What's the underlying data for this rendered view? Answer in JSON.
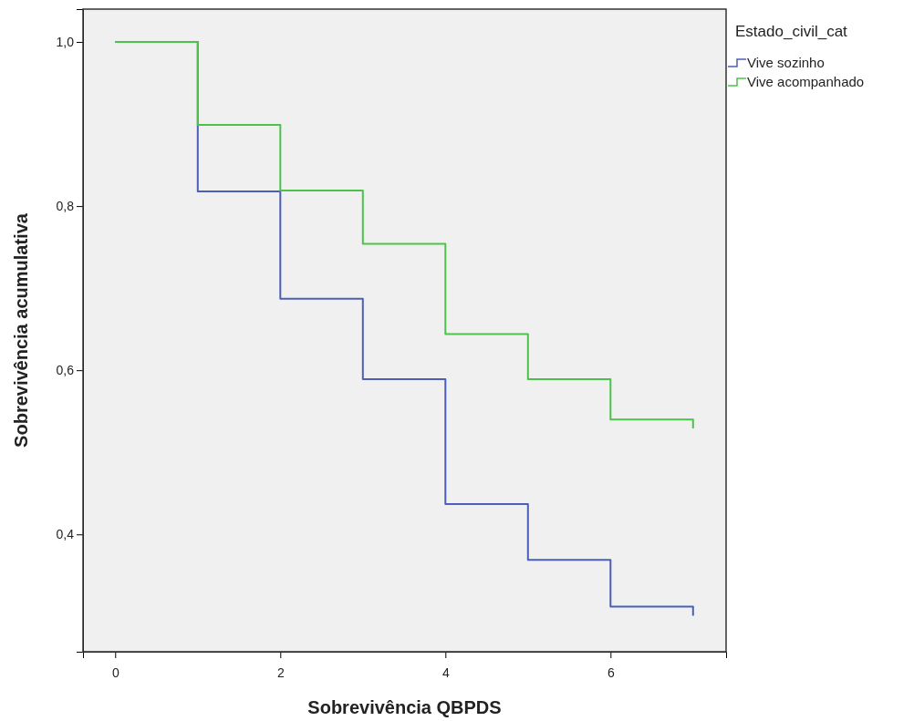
{
  "chart_data": {
    "type": "step",
    "xlabel": "Sobrevivência QBPDS",
    "ylabel": "Sobrevivência acumulativa",
    "legend_title": "Estado_civil_cat",
    "legend": "right",
    "grid": false,
    "marker": "none",
    "line_style": "solid",
    "xlim": [
      -0.39,
      7.4
    ],
    "xticks": [
      0,
      2,
      4,
      6
    ],
    "ylim": [
      0.257,
      1.04
    ],
    "yticks": [
      {
        "value": 0.4,
        "label": "0,4"
      },
      {
        "value": 0.6,
        "label": "0,6"
      },
      {
        "value": 0.8,
        "label": "0,8"
      },
      {
        "value": 1.0,
        "label": "1,0"
      }
    ],
    "series": [
      {
        "name": "Vive sozinho",
        "color": "#4a5fb5",
        "x": [
          0,
          1,
          2,
          3,
          4,
          5,
          6,
          7,
          7
        ],
        "values": [
          1.0,
          0.818,
          0.687,
          0.589,
          0.437,
          0.369,
          0.312,
          0.312,
          0.301
        ]
      },
      {
        "name": "Vive acompanhado",
        "color": "#4cc24c",
        "x": [
          0,
          1,
          2,
          3,
          4,
          5,
          6,
          7,
          7
        ],
        "values": [
          1.0,
          0.899,
          0.819,
          0.754,
          0.644,
          0.589,
          0.54,
          0.54,
          0.529
        ]
      }
    ]
  }
}
